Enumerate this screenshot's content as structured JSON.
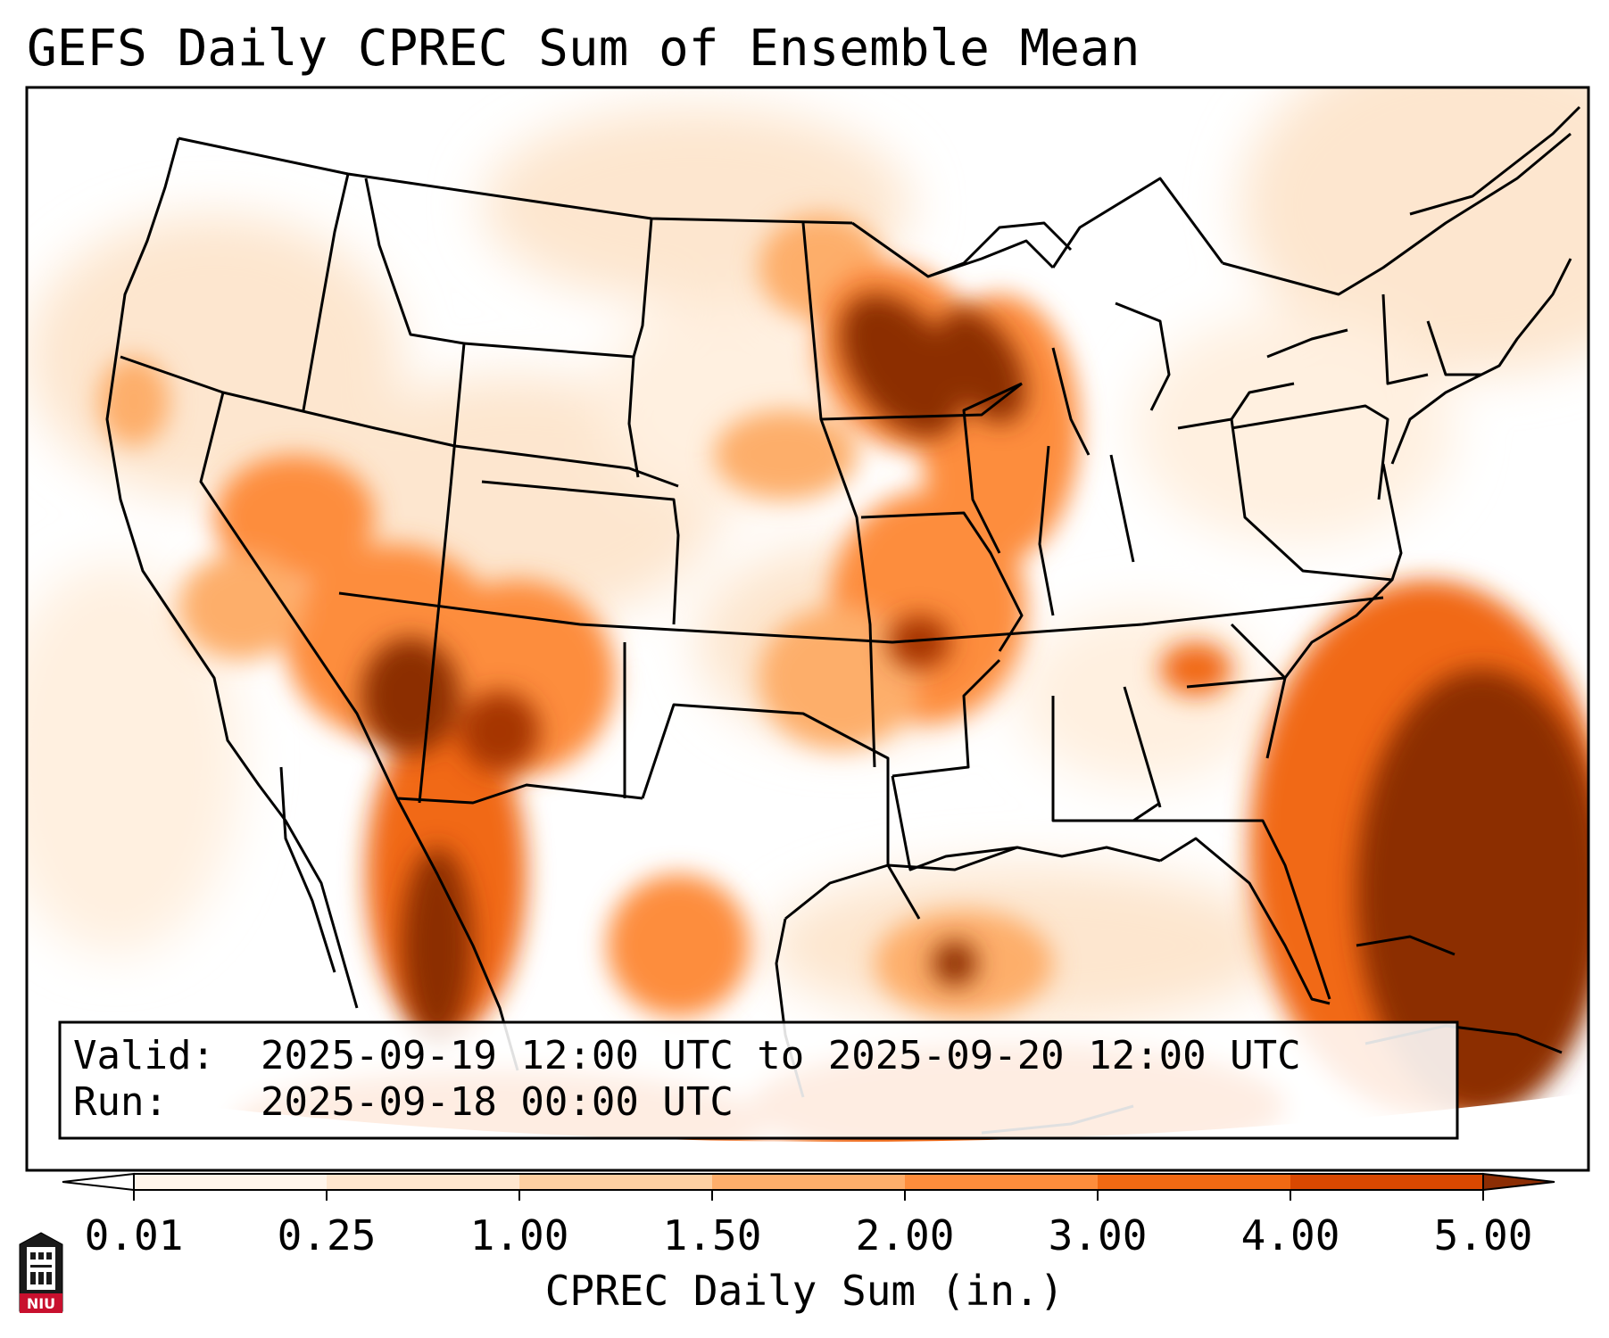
{
  "title": "GEFS Daily CPREC Sum of Ensemble Mean",
  "info_box": {
    "valid_label": "Valid:",
    "valid_value": "2025-09-19 12:00 UTC to 2025-09-20 12:00 UTC",
    "run_label": "Run:",
    "run_value": "2025-09-18 00:00 UTC"
  },
  "colorbar": {
    "label": "CPREC Daily Sum (in.)",
    "ticks": [
      "0.01",
      "0.25",
      "1.00",
      "1.50",
      "2.00",
      "3.00",
      "4.00",
      "5.00"
    ],
    "colors": [
      "#fff5eb",
      "#fee6ce",
      "#fdd0a2",
      "#fdae6b",
      "#fd8d3c",
      "#f16913",
      "#d94801",
      "#8c2d04"
    ],
    "extend": "both"
  },
  "logo": {
    "text": "NIU"
  }
}
